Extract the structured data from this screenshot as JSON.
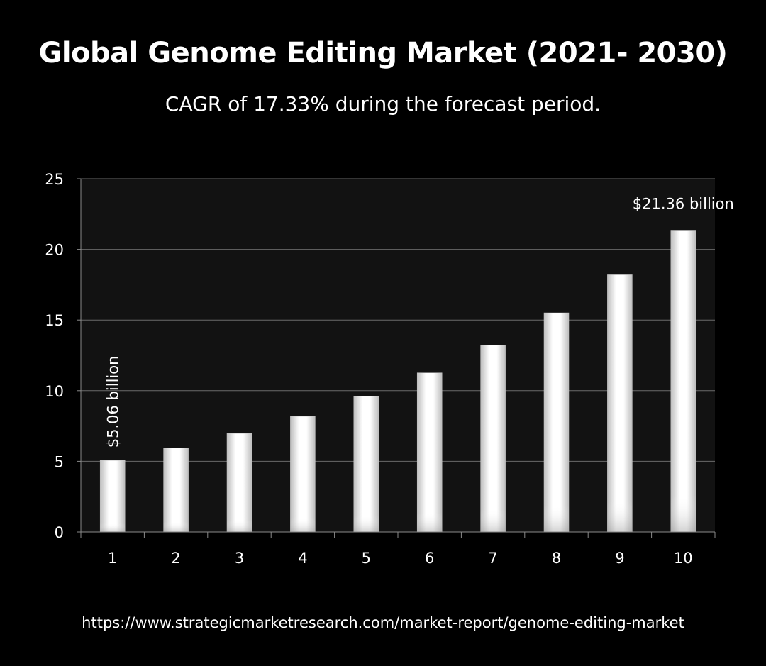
{
  "chart_data": {
    "type": "bar",
    "title": "Global Genome Editing Market (2021- 2030)",
    "subtitle": "CAGR of 17.33% during the forecast period.",
    "categories": [
      "1",
      "2",
      "3",
      "4",
      "5",
      "6",
      "7",
      "8",
      "9",
      "10"
    ],
    "values": [
      5.06,
      5.94,
      6.97,
      8.18,
      9.6,
      11.26,
      13.22,
      15.51,
      18.2,
      21.36
    ],
    "ylim": [
      0,
      25
    ],
    "yticks": [
      "0",
      "5",
      "10",
      "15",
      "20",
      "25"
    ],
    "grid": true,
    "annotations": [
      {
        "category_index": 0,
        "text": "$5.06 billion",
        "orientation": "vertical"
      },
      {
        "category_index": 9,
        "text": "$21.36 billion",
        "orientation": "horizontal"
      }
    ],
    "colors": {
      "background": "#000000",
      "plot_area": "#121212",
      "bar_edge": "#c9c9c9",
      "bar_center": "#ffffff",
      "gridline": "#6a6a6a"
    }
  },
  "footer": {
    "source_url": "https://www.strategicmarketresearch.com/market-report/genome-editing-market"
  }
}
